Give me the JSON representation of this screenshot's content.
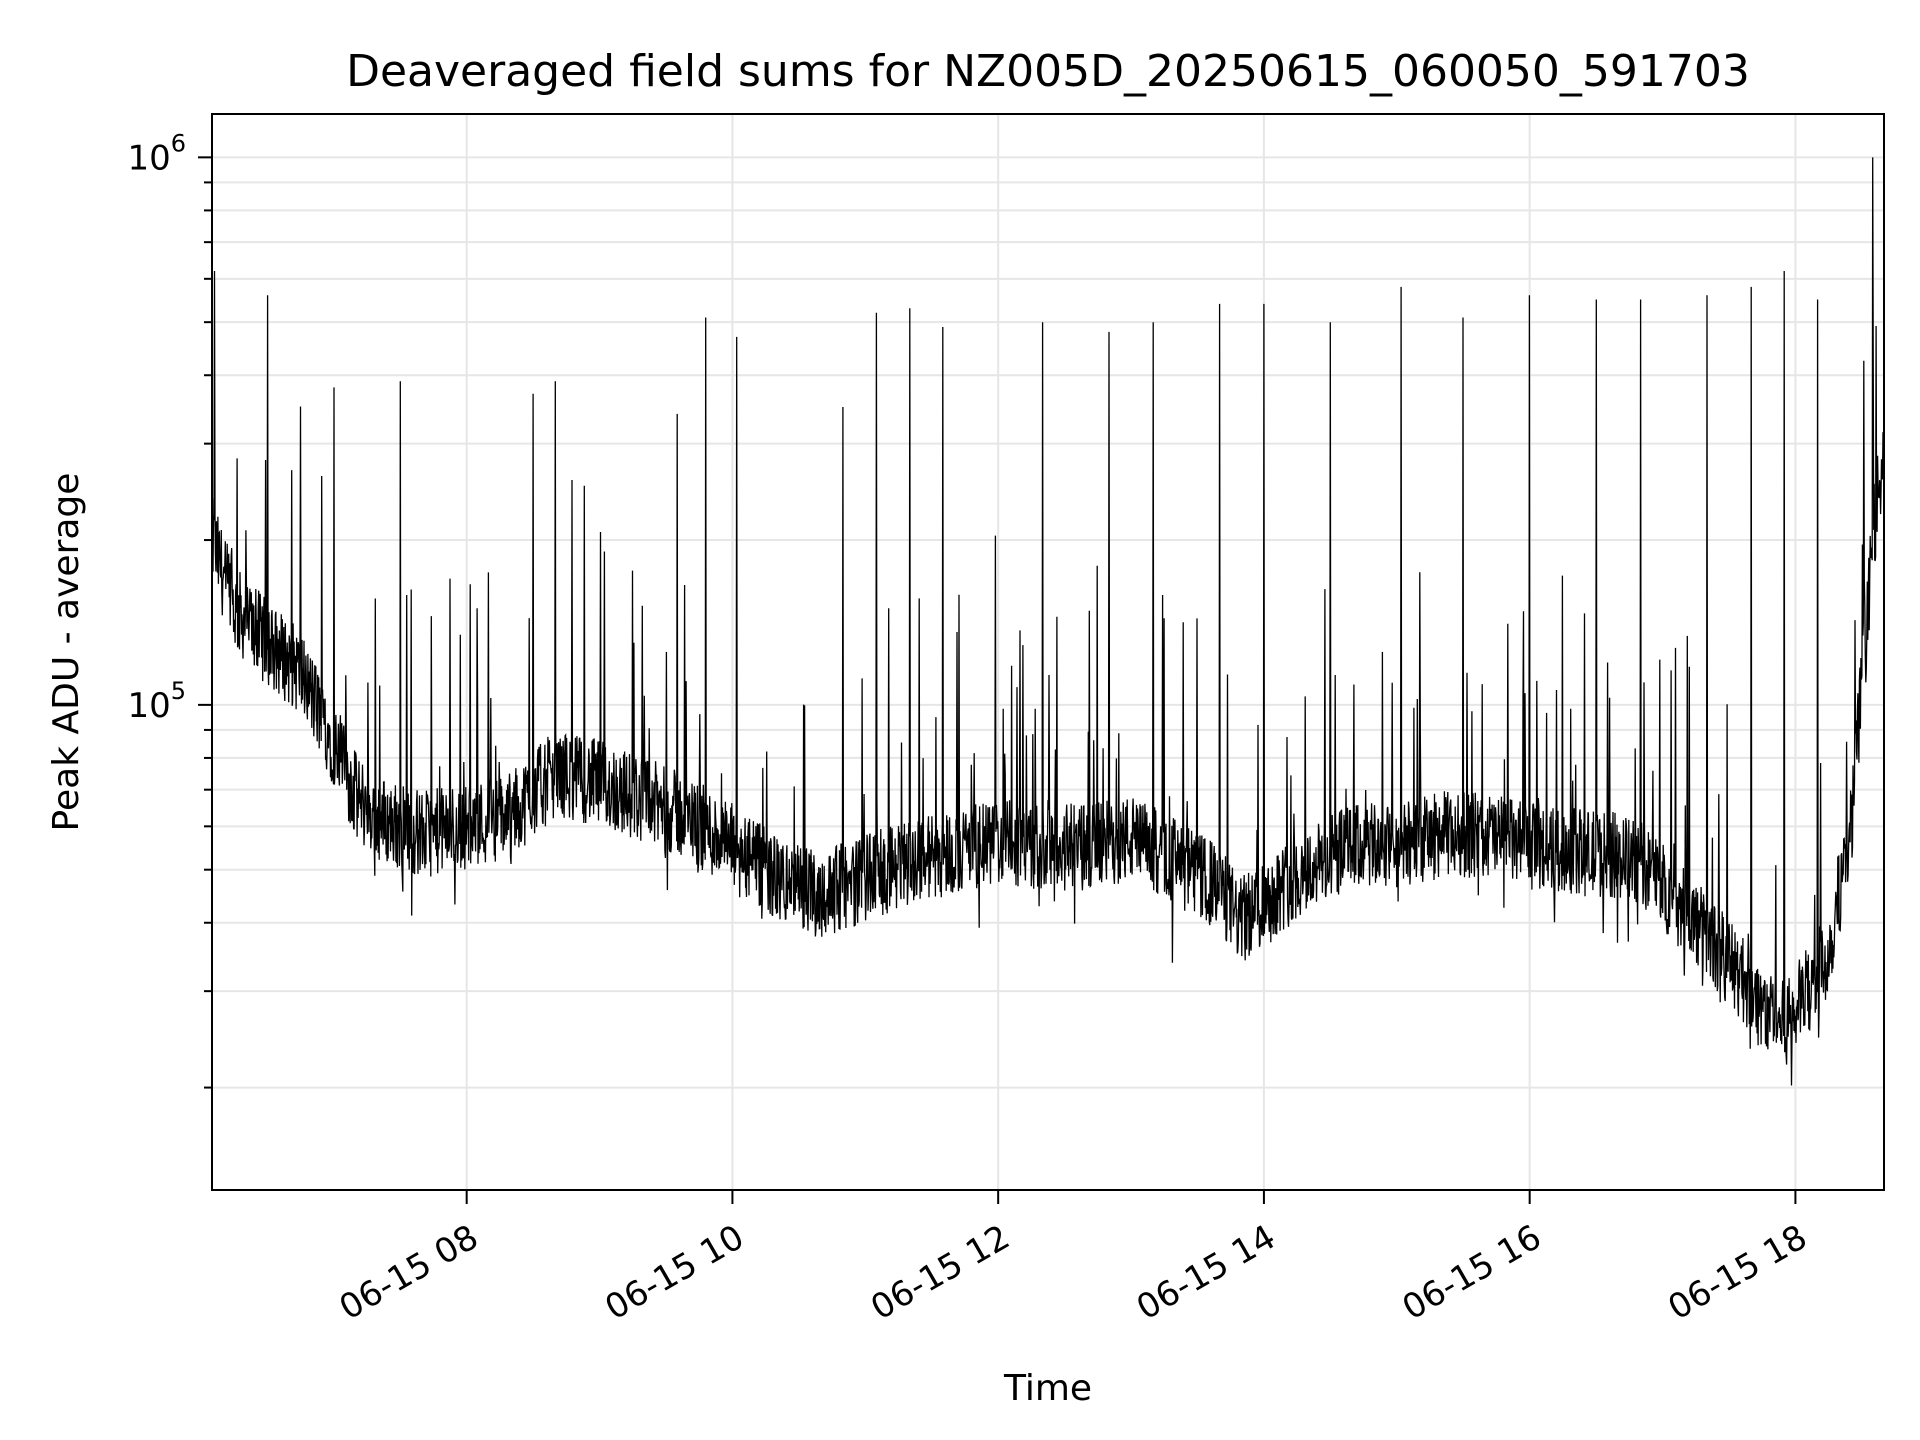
{
  "chart_data": {
    "type": "line",
    "title": "Deaveraged field sums for NZ005D_20250615_060050_591703",
    "xlabel": "Time",
    "ylabel": "Peak ADU - average",
    "yscale": "log",
    "xlim": [
      "2025-06-15 06:05",
      "2025-06-15 18:40"
    ],
    "ylim": [
      13000,
      1200000
    ],
    "grid": true,
    "x_ticks": [
      {
        "value": "2025-06-15 08:00",
        "label": "06-15 08"
      },
      {
        "value": "2025-06-15 10:00",
        "label": "06-15 10"
      },
      {
        "value": "2025-06-15 12:00",
        "label": "06-15 12"
      },
      {
        "value": "2025-06-15 14:00",
        "label": "06-15 14"
      },
      {
        "value": "2025-06-15 16:00",
        "label": "06-15 16"
      },
      {
        "value": "2025-06-15 18:00",
        "label": "06-15 18"
      }
    ],
    "y_ticks": [
      {
        "value": 100000,
        "base": "10",
        "exp": "5"
      },
      {
        "value": 1000000,
        "base": "10",
        "exp": "6"
      }
    ],
    "series": [
      {
        "color": "#000000",
        "baseline": {
          "x": [
            "2025-06-15 06:05",
            "2025-06-15 06:15",
            "2025-06-15 06:30",
            "2025-06-15 06:45",
            "2025-06-15 07:00",
            "2025-06-15 07:10",
            "2025-06-15 07:20",
            "2025-06-15 07:40",
            "2025-06-15 08:00",
            "2025-06-15 08:20",
            "2025-06-15 08:40",
            "2025-06-15 09:00",
            "2025-06-15 09:20",
            "2025-06-15 09:40",
            "2025-06-15 10:00",
            "2025-06-15 10:20",
            "2025-06-15 10:40",
            "2025-06-15 11:00",
            "2025-06-15 11:20",
            "2025-06-15 11:40",
            "2025-06-15 12:00",
            "2025-06-15 12:20",
            "2025-06-15 12:40",
            "2025-06-15 13:00",
            "2025-06-15 13:20",
            "2025-06-15 13:40",
            "2025-06-15 13:50",
            "2025-06-15 14:00",
            "2025-06-15 14:20",
            "2025-06-15 14:40",
            "2025-06-15 15:00",
            "2025-06-15 15:20",
            "2025-06-15 15:40",
            "2025-06-15 16:00",
            "2025-06-15 16:20",
            "2025-06-15 16:40",
            "2025-06-15 16:55",
            "2025-06-15 17:05",
            "2025-06-15 17:20",
            "2025-06-15 17:35",
            "2025-06-15 17:45",
            "2025-06-15 17:55",
            "2025-06-15 18:05",
            "2025-06-15 18:15",
            "2025-06-15 18:25",
            "2025-06-15 18:35",
            "2025-06-15 18:40"
          ],
          "y": [
            200000,
            150000,
            130000,
            115000,
            85000,
            68000,
            62000,
            58000,
            60000,
            63000,
            75000,
            72000,
            67000,
            62000,
            55000,
            48000,
            45000,
            48000,
            52000,
            54000,
            56000,
            55000,
            55000,
            57000,
            52000,
            46000,
            40000,
            44000,
            50000,
            55000,
            55000,
            58000,
            58000,
            55000,
            54000,
            53000,
            50000,
            44000,
            38000,
            32000,
            28000,
            26000,
            30000,
            35000,
            60000,
            200000,
            300000
          ]
        },
        "spikes": [
          {
            "x": "2025-06-15 06:06",
            "y": 620000
          },
          {
            "x": "2025-06-15 06:30",
            "y": 560000
          },
          {
            "x": "2025-06-15 07:00",
            "y": 380000
          },
          {
            "x": "2025-06-15 07:30",
            "y": 390000
          },
          {
            "x": "2025-06-15 08:30",
            "y": 370000
          },
          {
            "x": "2025-06-15 08:40",
            "y": 390000
          },
          {
            "x": "2025-06-15 09:35",
            "y": 340000
          },
          {
            "x": "2025-06-15 09:48",
            "y": 510000
          },
          {
            "x": "2025-06-15 10:02",
            "y": 470000
          },
          {
            "x": "2025-06-15 10:50",
            "y": 350000
          },
          {
            "x": "2025-06-15 11:05",
            "y": 520000
          },
          {
            "x": "2025-06-15 11:20",
            "y": 530000
          },
          {
            "x": "2025-06-15 11:35",
            "y": 490000
          },
          {
            "x": "2025-06-15 12:20",
            "y": 500000
          },
          {
            "x": "2025-06-15 12:50",
            "y": 480000
          },
          {
            "x": "2025-06-15 13:10",
            "y": 500000
          },
          {
            "x": "2025-06-15 13:40",
            "y": 540000
          },
          {
            "x": "2025-06-15 14:00",
            "y": 540000
          },
          {
            "x": "2025-06-15 14:30",
            "y": 500000
          },
          {
            "x": "2025-06-15 15:02",
            "y": 580000
          },
          {
            "x": "2025-06-15 15:30",
            "y": 510000
          },
          {
            "x": "2025-06-15 16:00",
            "y": 560000
          },
          {
            "x": "2025-06-15 16:30",
            "y": 550000
          },
          {
            "x": "2025-06-15 16:50",
            "y": 550000
          },
          {
            "x": "2025-06-15 17:20",
            "y": 560000
          },
          {
            "x": "2025-06-15 17:40",
            "y": 580000
          },
          {
            "x": "2025-06-15 17:55",
            "y": 620000
          },
          {
            "x": "2025-06-15 18:10",
            "y": 550000
          },
          {
            "x": "2025-06-15 18:35",
            "y": 1000000
          }
        ]
      }
    ]
  }
}
